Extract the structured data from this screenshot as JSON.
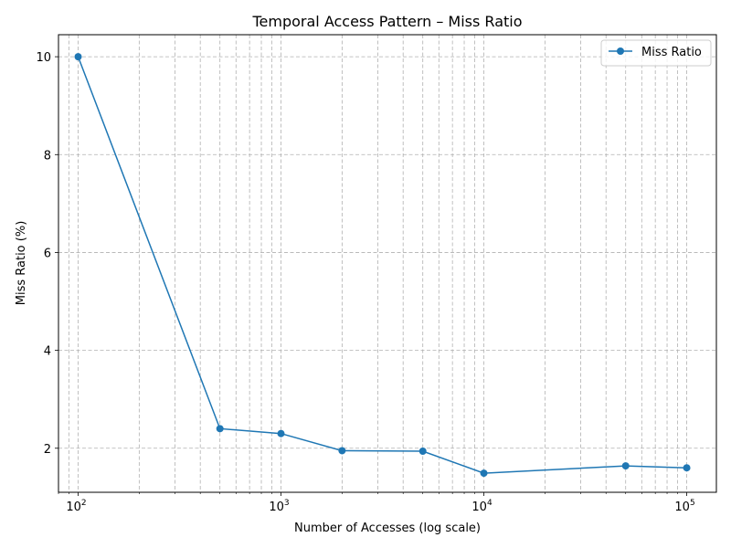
{
  "chart_data": {
    "type": "line",
    "title": "Temporal Access Pattern – Miss Ratio",
    "xlabel": "Number of Accesses (log scale)",
    "ylabel": "Miss Ratio (%)",
    "xscale": "log",
    "xlim": [
      80,
      140000
    ],
    "ylim": [
      1.1,
      10.45
    ],
    "x_ticks": [
      {
        "base": "10",
        "exp": "2",
        "value": 100
      },
      {
        "base": "10",
        "exp": "3",
        "value": 1000
      },
      {
        "base": "10",
        "exp": "4",
        "value": 10000
      },
      {
        "base": "10",
        "exp": "5",
        "value": 100000
      }
    ],
    "y_ticks": [
      {
        "label": "2",
        "value": 2
      },
      {
        "label": "4",
        "value": 4
      },
      {
        "label": "6",
        "value": 6
      },
      {
        "label": "8",
        "value": 8
      },
      {
        "label": "10",
        "value": 10
      }
    ],
    "grid": true,
    "grid_minor": true,
    "legend_position": "top-right",
    "series": [
      {
        "name": "Miss Ratio",
        "color": "#1f77b4",
        "marker": "circle",
        "x": [
          100,
          500,
          1000,
          2000,
          5000,
          10000,
          50000,
          100000
        ],
        "y": [
          10.0,
          2.4,
          2.3,
          1.95,
          1.94,
          1.49,
          1.64,
          1.6
        ]
      }
    ]
  }
}
